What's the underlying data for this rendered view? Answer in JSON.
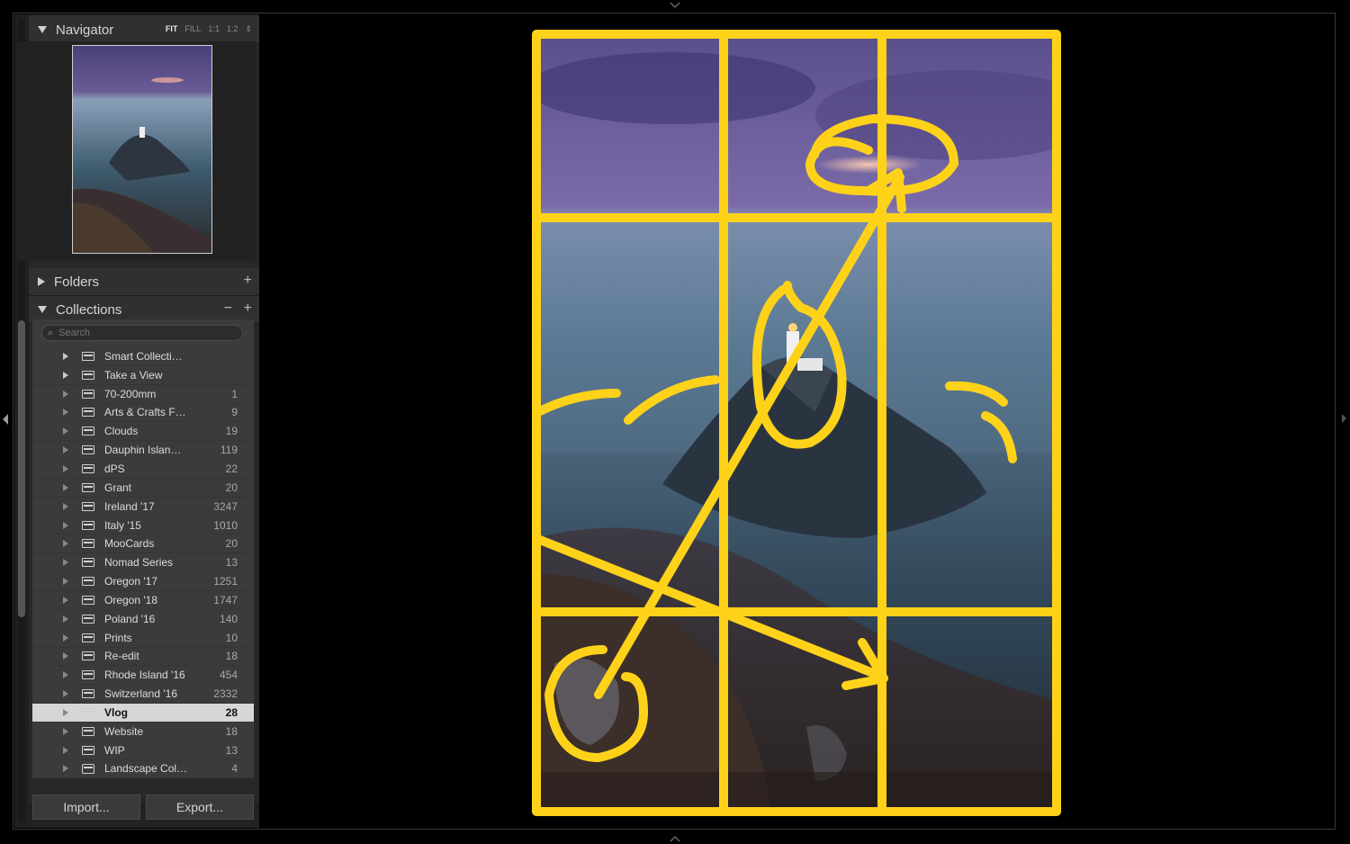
{
  "navigator": {
    "title": "Navigator",
    "zoom_options": [
      "FIT",
      "FILL",
      "1:1",
      "1:2"
    ],
    "active_zoom": "FIT"
  },
  "folders": {
    "title": "Folders",
    "add": "+"
  },
  "collections": {
    "title": "Collections",
    "minus": "−",
    "add": "+",
    "search_placeholder": "Search",
    "items": [
      {
        "name": "Smart Collecti…",
        "count": "",
        "type": "set"
      },
      {
        "name": "Take a View",
        "count": "",
        "type": "set"
      },
      {
        "name": "70-200mm",
        "count": "1",
        "type": "collection"
      },
      {
        "name": "Arts & Crafts F…",
        "count": "9",
        "type": "collection"
      },
      {
        "name": "Clouds",
        "count": "19",
        "type": "collection"
      },
      {
        "name": "Dauphin Islan…",
        "count": "119",
        "type": "collection"
      },
      {
        "name": "dPS",
        "count": "22",
        "type": "collection"
      },
      {
        "name": "Grant",
        "count": "20",
        "type": "collection"
      },
      {
        "name": "Ireland '17",
        "count": "3247",
        "type": "collection"
      },
      {
        "name": "Italy '15",
        "count": "1010",
        "type": "collection"
      },
      {
        "name": "MooCards",
        "count": "20",
        "type": "collection"
      },
      {
        "name": "Nomad Series",
        "count": "13",
        "type": "collection"
      },
      {
        "name": "Oregon '17",
        "count": "1251",
        "type": "collection"
      },
      {
        "name": "Oregon '18",
        "count": "1747",
        "type": "collection"
      },
      {
        "name": "Poland '16",
        "count": "140",
        "type": "collection"
      },
      {
        "name": "Prints",
        "count": "10",
        "type": "collection"
      },
      {
        "name": "Re-edit",
        "count": "18",
        "type": "collection"
      },
      {
        "name": "Rhode Island '16",
        "count": "454",
        "type": "collection"
      },
      {
        "name": "Switzerland '16",
        "count": "2332",
        "type": "collection"
      },
      {
        "name": "Vlog",
        "count": "28",
        "type": "collection",
        "selected": true
      },
      {
        "name": "Website",
        "count": "18",
        "type": "collection"
      },
      {
        "name": "WIP",
        "count": "13",
        "type": "collection"
      },
      {
        "name": "Landscape Col…",
        "count": "4",
        "type": "print"
      }
    ]
  },
  "buttons": {
    "import": "Import...",
    "export": "Export..."
  },
  "colors": {
    "overlay": "#ffd21a",
    "selected_row": "#d6d6d6"
  },
  "icons": [
    "disclosure-triangle-icon",
    "collection-icon",
    "collection-set-icon",
    "print-icon",
    "search-icon"
  ]
}
